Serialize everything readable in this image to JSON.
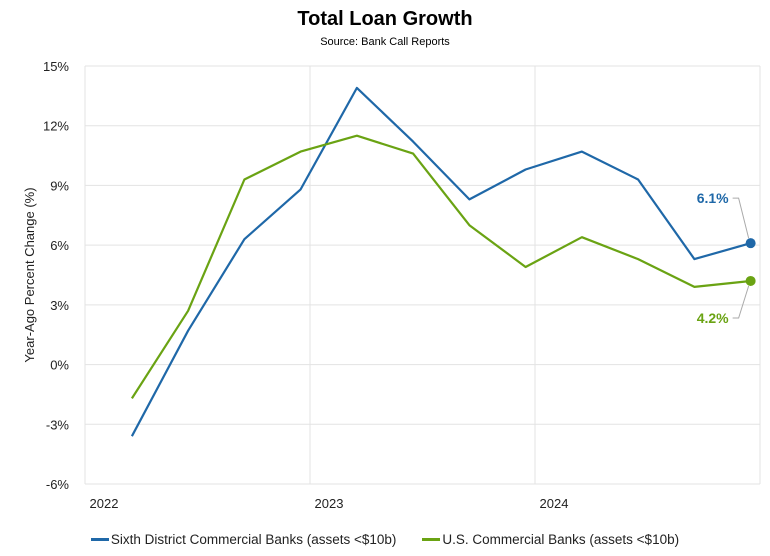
{
  "chart_data": {
    "type": "line",
    "title": "Total Loan Growth",
    "subtitle": "Source: Bank Call Reports",
    "ylabel": "Year-Ago Percent Change (%)",
    "xlabel": "",
    "ylim": [
      -6,
      15
    ],
    "yticks": [
      -6,
      -3,
      0,
      3,
      6,
      9,
      12,
      15
    ],
    "ytick_labels": [
      "-6%",
      "-3%",
      "0%",
      "3%",
      "6%",
      "9%",
      "12%",
      "15%"
    ],
    "xlim": [
      "2022-01",
      "2025-01"
    ],
    "xticks": [
      "2022",
      "2023",
      "2024"
    ],
    "grid": true,
    "legend_position": "bottom",
    "x": [
      "2022-03",
      "2022-06",
      "2022-09",
      "2022-12",
      "2023-03",
      "2023-06",
      "2023-09",
      "2023-12",
      "2024-03",
      "2024-06",
      "2024-09",
      "2024-12"
    ],
    "series": [
      {
        "name": "Sixth District Commercial Banks (assets <$10b)",
        "color": "#1f68a8",
        "values": [
          -3.6,
          1.7,
          6.3,
          8.8,
          13.9,
          11.2,
          8.3,
          9.8,
          10.7,
          9.3,
          5.3,
          6.1
        ],
        "end_label": "6.1%"
      },
      {
        "name": "U.S. Commercial Banks (assets <$10b)",
        "color": "#6aa313",
        "values": [
          -1.7,
          2.7,
          9.3,
          10.7,
          11.5,
          10.6,
          7.0,
          4.9,
          6.4,
          5.3,
          3.9,
          4.2
        ],
        "end_label": "4.2%"
      }
    ]
  }
}
